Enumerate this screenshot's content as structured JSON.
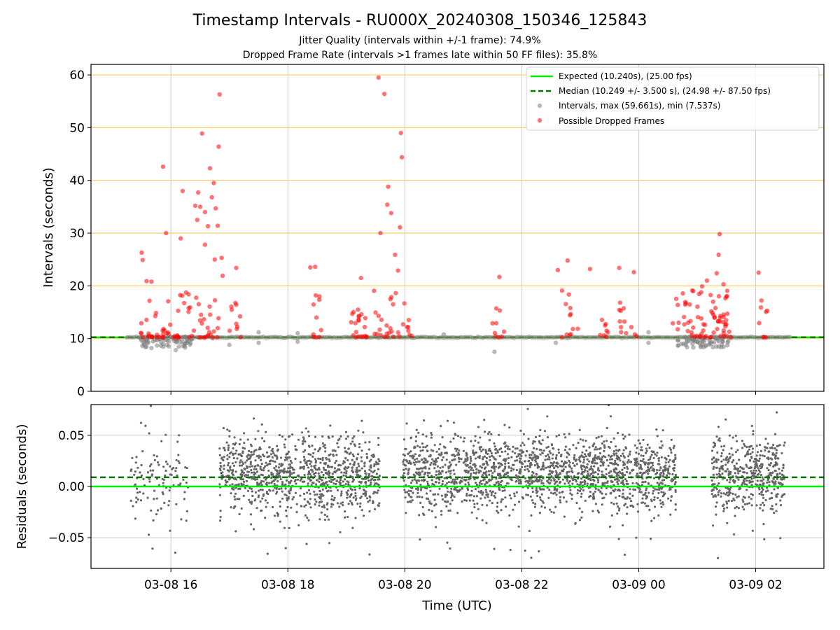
{
  "figure": {
    "title": "Timestamp Intervals - RU000X_20240308_150346_125843",
    "subtitle_1": "Jitter Quality (intervals within +/-1 frame): 74.9%",
    "subtitle_2": "Dropped Frame Rate (intervals >1 frames late within 50 FF files): 35.8%",
    "xlabel": "Time (UTC)"
  },
  "colors": {
    "expected": "#00ee00",
    "median": "#007700",
    "intervals": "#808080",
    "dropped": "#ff0000",
    "hgrid_top": "#ffcc66",
    "residual_points": "#666666"
  },
  "chart_data": [
    {
      "type": "scatter",
      "panel": "intervals",
      "ylabel": "Intervals (seconds)",
      "x_axis": {
        "type": "datetime",
        "range": [
          "2024-03-08T14:38",
          "2024-03-09T03:10"
        ],
        "ticks": [
          "03-08 16",
          "03-08 18",
          "03-08 20",
          "03-08 22",
          "03-09 00",
          "03-09 02"
        ]
      },
      "ylim": [
        0,
        62
      ],
      "yticks": [
        0,
        10,
        20,
        30,
        40,
        50,
        60
      ],
      "grid": true,
      "legend_placement": "top-right",
      "legend": [
        {
          "kind": "line",
          "label": "Expected (10.240s), (25.00 fps)"
        },
        {
          "kind": "dashed-line",
          "label": "Median (10.249 +/- 3.500 s), (24.98 +/- 87.50 fps)"
        },
        {
          "kind": "marker-gray",
          "label": "Intervals, max (59.661s), min (7.537s)"
        },
        {
          "kind": "marker-red",
          "label": "Possible Dropped Frames"
        }
      ],
      "reference_lines": {
        "expected": 10.24,
        "median": 10.249
      },
      "series": [
        {
          "name": "Possible Dropped Frames",
          "points": [
            [
              "2024-03-08T15:30",
              26.3
            ],
            [
              "2024-03-08T15:31",
              24.9
            ],
            [
              "2024-03-08T15:35",
              20.9
            ],
            [
              "2024-03-08T15:40",
              20.8
            ],
            [
              "2024-03-08T15:52",
              42.6
            ],
            [
              "2024-03-08T15:55",
              30.0
            ],
            [
              "2024-03-08T16:10",
              29.0
            ],
            [
              "2024-03-08T16:12",
              38.0
            ],
            [
              "2024-03-08T16:25",
              35.2
            ],
            [
              "2024-03-08T16:27",
              32.5
            ],
            [
              "2024-03-08T16:28",
              37.7
            ],
            [
              "2024-03-08T16:30",
              35.0
            ],
            [
              "2024-03-08T16:32",
              48.9
            ],
            [
              "2024-03-08T16:35",
              34.0
            ],
            [
              "2024-03-08T16:38",
              31.3
            ],
            [
              "2024-03-08T16:35",
              27.8
            ],
            [
              "2024-03-08T16:40",
              42.3
            ],
            [
              "2024-03-08T16:42",
              36.8
            ],
            [
              "2024-03-08T16:44",
              39.5
            ],
            [
              "2024-03-08T16:46",
              34.7
            ],
            [
              "2024-03-08T16:48",
              31.4
            ],
            [
              "2024-03-08T16:50",
              56.3
            ],
            [
              "2024-03-08T16:49",
              46.4
            ],
            [
              "2024-03-08T16:52",
              25.3
            ],
            [
              "2024-03-08T16:45",
              25.0
            ],
            [
              "2024-03-08T16:53",
              21.9
            ],
            [
              "2024-03-08T17:07",
              23.4
            ],
            [
              "2024-03-08T18:23",
              23.5
            ],
            [
              "2024-03-08T18:28",
              23.6
            ],
            [
              "2024-03-08T19:33",
              59.5
            ],
            [
              "2024-03-08T19:39",
              56.4
            ],
            [
              "2024-03-08T19:56",
              49.0
            ],
            [
              "2024-03-08T19:57",
              44.4
            ],
            [
              "2024-03-08T19:43",
              38.8
            ],
            [
              "2024-03-08T19:42",
              35.4
            ],
            [
              "2024-03-08T19:46",
              33.8
            ],
            [
              "2024-03-08T19:35",
              30.0
            ],
            [
              "2024-03-08T19:55",
              31.1
            ],
            [
              "2024-03-08T19:50",
              25.9
            ],
            [
              "2024-03-08T19:53",
              22.9
            ],
            [
              "2024-03-08T19:15",
              21.5
            ],
            [
              "2024-03-08T19:12",
              15.5
            ],
            [
              "2024-03-08T19:05",
              13.1
            ],
            [
              "2024-03-08T19:48",
              16.5
            ],
            [
              "2024-03-08T21:30",
              12.9
            ],
            [
              "2024-03-08T21:37",
              21.7
            ],
            [
              "2024-03-08T22:37",
              23.0
            ],
            [
              "2024-03-08T22:47",
              24.8
            ],
            [
              "2024-03-08T23:10",
              23.2
            ],
            [
              "2024-03-08T23:40",
              23.4
            ],
            [
              "2024-03-08T23:55",
              22.6
            ],
            [
              "2024-03-09T00:35",
              12.9
            ],
            [
              "2024-03-09T01:05",
              19.9
            ],
            [
              "2024-03-09T01:10",
              21.0
            ],
            [
              "2024-03-09T01:20",
              22.4
            ],
            [
              "2024-03-09T01:23",
              29.8
            ],
            [
              "2024-03-09T01:22",
              25.9
            ],
            [
              "2024-03-09T01:27",
              20.3
            ],
            [
              "2024-03-09T01:30",
              18.0
            ],
            [
              "2024-03-09T02:03",
              22.5
            ]
          ]
        },
        {
          "name": "Intervals, max (59.661s), min (7.537s)",
          "points": [
            [
              "2024-03-08T15:40",
              8.2
            ],
            [
              "2024-03-08T16:05",
              7.8
            ],
            [
              "2024-03-08T17:00",
              8.8
            ],
            [
              "2024-03-08T17:30",
              9.2
            ],
            [
              "2024-03-08T18:10",
              9.4
            ],
            [
              "2024-03-08T21:32",
              7.5
            ],
            [
              "2024-03-08T17:30",
              11.2
            ],
            [
              "2024-03-08T18:10",
              11.0
            ],
            [
              "2024-03-08T20:40",
              10.8
            ],
            [
              "2024-03-09T00:10",
              11.2
            ],
            [
              "2024-03-09T00:10",
              9.2
            ],
            [
              "2024-03-08T22:35",
              9.2
            ],
            [
              "2024-03-09T00:50",
              9.5
            ],
            [
              "2024-03-09T01:15",
              9.3
            ]
          ]
        }
      ]
    },
    {
      "type": "scatter",
      "panel": "residuals",
      "ylabel": "Residuals (seconds)",
      "x_axis": {
        "type": "datetime",
        "range": [
          "2024-03-08T14:38",
          "2024-03-09T03:10"
        ]
      },
      "ylim": [
        -0.08,
        0.08
      ],
      "yticks": [
        0.05,
        0.0,
        -0.05
      ],
      "ytick_labels": [
        "0.05",
        "0.00",
        "−0.05"
      ],
      "grid": true,
      "reference_lines": {
        "expected": 0.0,
        "median": 0.009
      },
      "series": [
        {
          "name": "",
          "summary": "dense scatter of per-interval residuals, mostly between -0.02 and 0.05 s",
          "segments": [
            {
              "start": "2024-03-08T15:18",
              "end": "2024-03-08T16:18",
              "density": "sparse",
              "mean": 0.01,
              "spread": 0.025
            },
            {
              "start": "2024-03-08T16:50",
              "end": "2024-03-08T19:35",
              "density": "dense",
              "mean": 0.012,
              "spread": 0.02
            },
            {
              "start": "2024-03-08T19:58",
              "end": "2024-03-09T00:38",
              "density": "dense",
              "mean": 0.014,
              "spread": 0.02
            },
            {
              "start": "2024-03-09T01:15",
              "end": "2024-03-09T02:30",
              "density": "dense",
              "mean": 0.012,
              "spread": 0.02
            }
          ]
        }
      ]
    }
  ]
}
